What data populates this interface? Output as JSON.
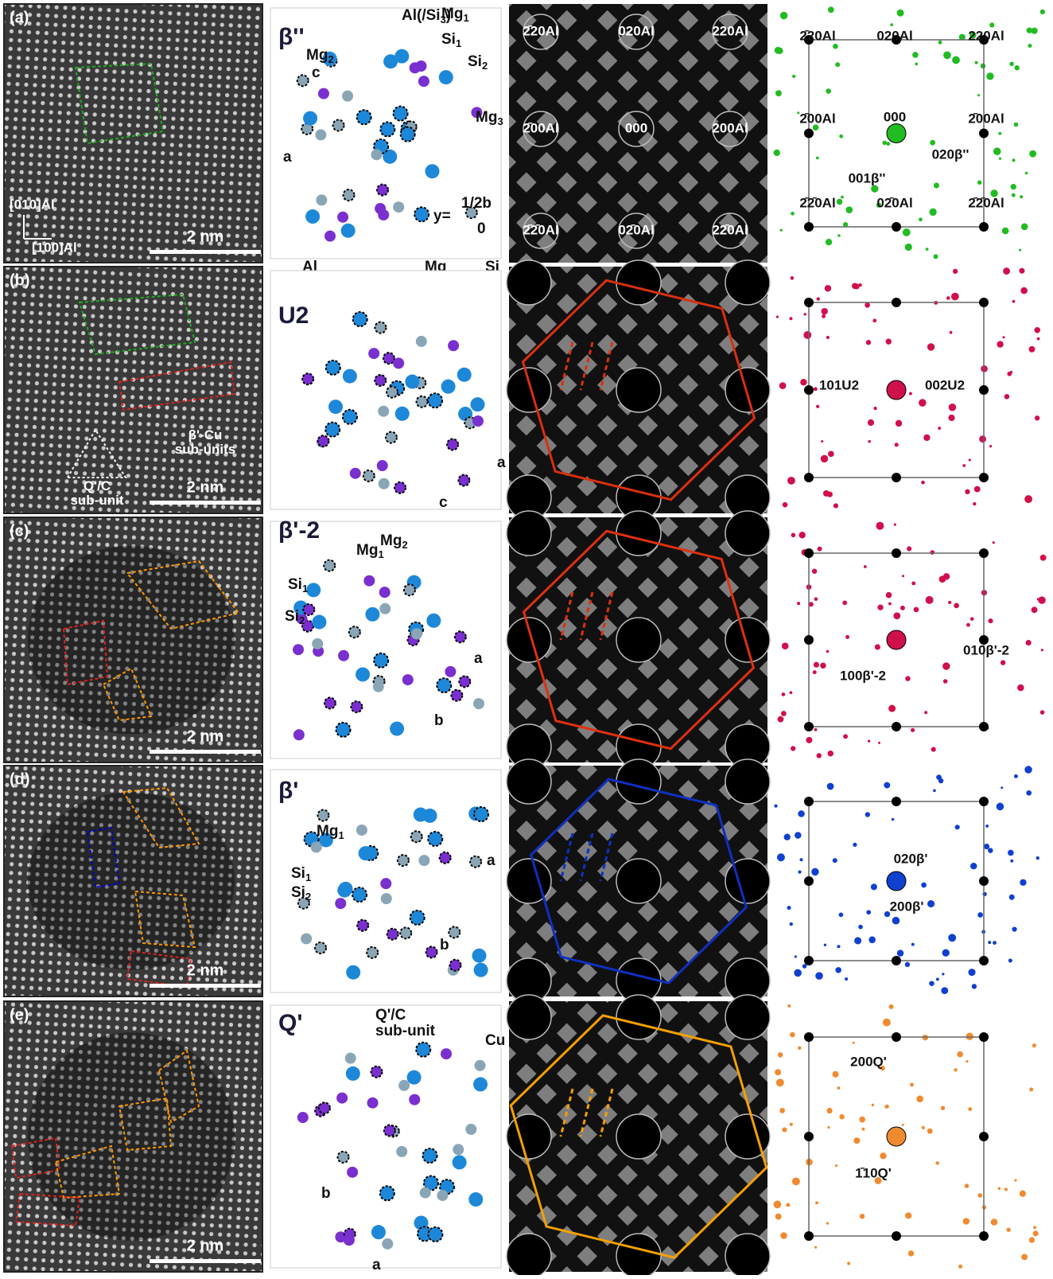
{
  "haadf": [
    {
      "label": "(a)",
      "scale_bar": "2 nm",
      "axis_labels": [
        "[010]Al",
        "[100]Al"
      ]
    },
    {
      "label": "(b)",
      "scale_bar": "2 nm",
      "annotations": [
        [
          "β'-Cu",
          "sub-units"
        ],
        [
          "Q'/C",
          "sub-unit"
        ]
      ]
    },
    {
      "label": "(c)",
      "scale_bar": "2 nm"
    },
    {
      "label": "(d)",
      "scale_bar": "2 nm"
    },
    {
      "label": "(e)",
      "scale_bar": "2 nm"
    }
  ],
  "models": [
    {
      "phase": "β''",
      "labels": [
        {
          "text": "Al(/Si",
          "sub": "3",
          "tail": ")"
        },
        {
          "text": "Mg",
          "sub": "1"
        },
        {
          "text": "Si",
          "sub": "1"
        },
        {
          "text": "Mg",
          "sub": "2"
        },
        {
          "text": "Si",
          "sub": "2"
        },
        {
          "text": "Mg",
          "sub": "3"
        },
        {
          "text": "c"
        },
        {
          "text": "a"
        },
        {
          "text": "y="
        },
        {
          "text": "1/2b"
        },
        {
          "text": "0"
        },
        {
          "text": "Al"
        },
        {
          "text": "Mg"
        },
        {
          "text": "Si"
        }
      ]
    },
    {
      "phase": "U2",
      "labels": [
        {
          "text": "a"
        },
        {
          "text": "c"
        }
      ]
    },
    {
      "phase": "β'-2",
      "labels": [
        {
          "text": "Mg",
          "sub": "1"
        },
        {
          "text": "Mg",
          "sub": "2"
        },
        {
          "text": "Si",
          "sub": "1"
        },
        {
          "text": "Si",
          "sub": "2"
        },
        {
          "text": "a"
        },
        {
          "text": "b"
        }
      ]
    },
    {
      "phase": "β'",
      "labels": [
        {
          "text": "Mg",
          "sub": "1"
        },
        {
          "text": "Si",
          "sub": "1"
        },
        {
          "text": "Si",
          "sub": "2"
        },
        {
          "text": "a"
        },
        {
          "text": "b"
        }
      ]
    },
    {
      "phase": "Q'",
      "labels": [
        {
          "text": "Q'/C"
        },
        {
          "text": "sub-unit"
        },
        {
          "text": "Cu"
        },
        {
          "text": "b"
        },
        {
          "text": "a"
        }
      ]
    }
  ],
  "fft": [
    {
      "labels": [
        "2̄20Al",
        "020Al",
        "220Al",
        "2̄00Al",
        "000",
        "200Al",
        "2̄2̄0Al",
        "02̄0Al",
        "22̄0Al"
      ]
    },
    {},
    {},
    {},
    {}
  ],
  "diffraction": [
    {
      "labels": [
        "2̄20Al",
        "020Al",
        "220Al",
        "2̄00Al",
        "2̄00Al",
        "2̄2̄0Al",
        "02̄0Al",
        "2̄2̄0Al",
        "000",
        "020β''",
        "001β''"
      ]
    },
    {
      "labels": [
        "101U2",
        "002U2"
      ]
    },
    {
      "labels": [
        "010β'-2",
        "100β'-2"
      ]
    },
    {
      "labels": [
        "020β'",
        "200β'"
      ]
    },
    {
      "labels": [
        "200Q'",
        "1̄10Q'"
      ]
    }
  ]
}
